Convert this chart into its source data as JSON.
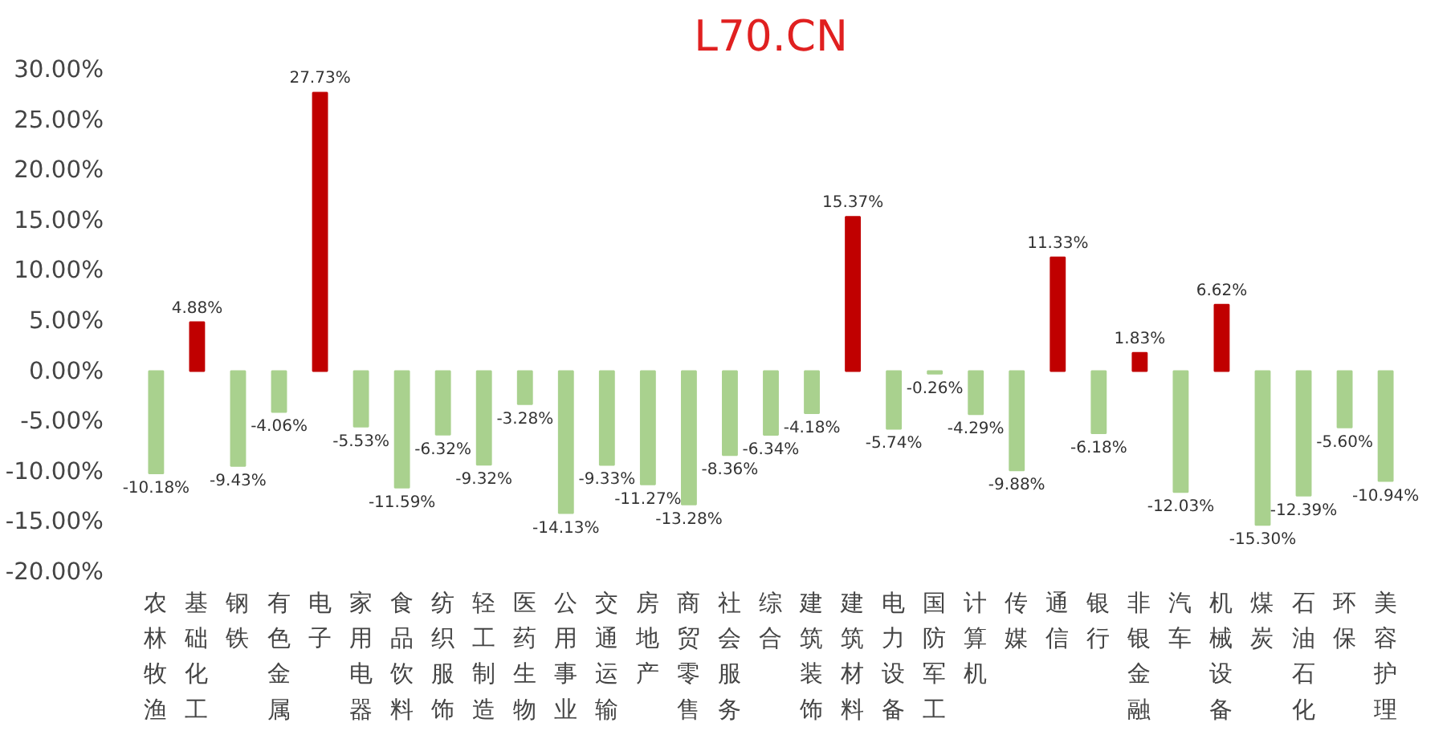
{
  "chart_data": {
    "type": "bar",
    "title": "L70.CN",
    "categories": [
      "农林牧渔",
      "基础化工",
      "钢铁",
      "有色金属",
      "电子",
      "家用电器",
      "食品饮料",
      "纺织服饰",
      "轻工制造",
      "医药生物",
      "公用事业",
      "交通运输",
      "房地产",
      "商贸零售",
      "社会服务",
      "综合",
      "建筑装饰",
      "建筑材料",
      "电力设备",
      "国防军工",
      "计算机",
      "传媒",
      "通信",
      "银行",
      "非银金融",
      "汽车",
      "机械设备",
      "煤炭",
      "石油石化",
      "环保",
      "美容护理"
    ],
    "values": [
      -10.18,
      4.88,
      -9.43,
      -4.06,
      27.73,
      -5.53,
      -11.59,
      -6.32,
      -9.32,
      -3.28,
      -14.13,
      -9.33,
      -11.27,
      -13.28,
      -8.36,
      -6.34,
      -4.18,
      15.37,
      -5.74,
      -0.26,
      -4.29,
      -9.88,
      11.33,
      -6.18,
      1.83,
      -12.03,
      6.62,
      -15.3,
      -12.39,
      -5.6,
      -10.94
    ],
    "colors": [
      "#a9d18e",
      "#c00000",
      "#a9d18e",
      "#a9d18e",
      "#c00000",
      "#a9d18e",
      "#a9d18e",
      "#a9d18e",
      "#a9d18e",
      "#a9d18e",
      "#a9d18e",
      "#a9d18e",
      "#a9d18e",
      "#a9d18e",
      "#a9d18e",
      "#a9d18e",
      "#a9d18e",
      "#c00000",
      "#a9d18e",
      "#a9d18e",
      "#a9d18e",
      "#a9d18e",
      "#c00000",
      "#a9d18e",
      "#c00000",
      "#a9d18e",
      "#c00000",
      "#a9d18e",
      "#a9d18e",
      "#a9d18e",
      "#a9d18e"
    ],
    "value_labels": [
      "-10.18%",
      "4.88%",
      "-9.43%",
      "-4.06%",
      "27.73%",
      "-5.53%",
      "-11.59%",
      "-6.32%",
      "-9.32%",
      "-3.28%",
      "-14.13%",
      "-9.33%",
      "-11.27%",
      "-13.28%",
      "-8.36%",
      "-6.34%",
      "-4.18%",
      "15.37%",
      "-5.74%",
      "-0.26%",
      "-4.29%",
      "-9.88%",
      "11.33%",
      "-6.18%",
      "1.83%",
      "-12.03%",
      "6.62%",
      "-15.30%",
      "-12.39%",
      "-5.60%",
      "-10.94%"
    ],
    "ylim": [
      -20,
      30
    ],
    "yticks": [
      {
        "value": -20,
        "label": "-20.00%"
      },
      {
        "value": -15,
        "label": "-15.00%"
      },
      {
        "value": -10,
        "label": "-10.00%"
      },
      {
        "value": -5,
        "label": "-5.00%"
      },
      {
        "value": 0,
        "label": "0.00%"
      },
      {
        "value": 5,
        "label": "5.00%"
      },
      {
        "value": 10,
        "label": "10.00%"
      },
      {
        "value": 15,
        "label": "15.00%"
      },
      {
        "value": 20,
        "label": "20.00%"
      },
      {
        "value": 25,
        "label": "25.00%"
      },
      {
        "value": 30,
        "label": "30.00%"
      }
    ],
    "grid": false
  }
}
